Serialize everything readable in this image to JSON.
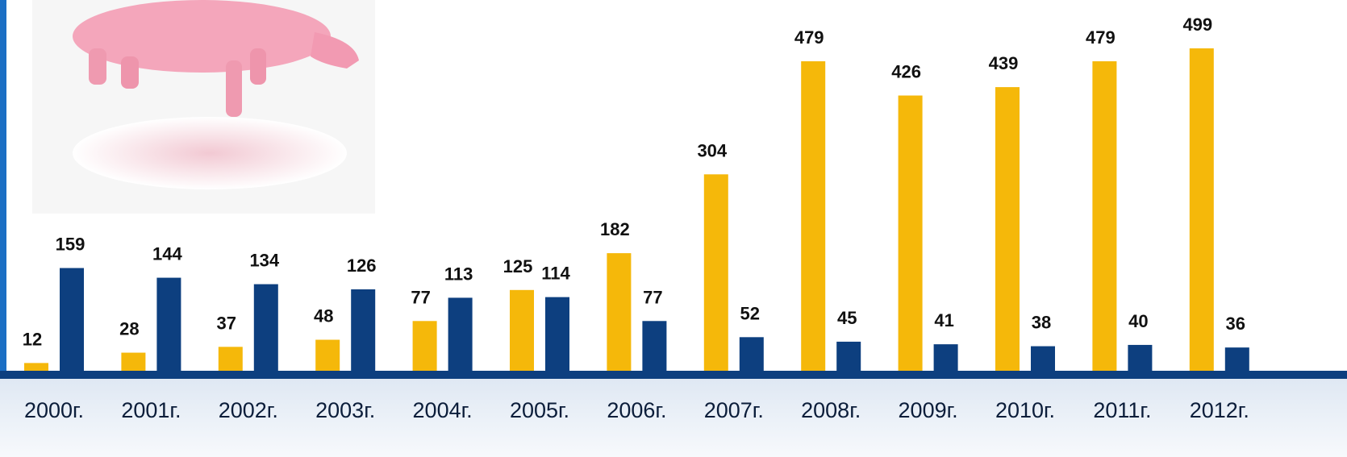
{
  "chart_data": {
    "type": "bar",
    "categories": [
      "2000г.",
      "2001г.",
      "2002г.",
      "2003г.",
      "2004г.",
      "2005г.",
      "2006г.",
      "2007г.",
      "2008г.",
      "2009г.",
      "2010г.",
      "2011г.",
      "2012г."
    ],
    "series": [
      {
        "color": "#f5b80a",
        "values": [
          12,
          28,
          37,
          48,
          77,
          125,
          182,
          304,
          479,
          426,
          439,
          479,
          499
        ]
      },
      {
        "color": "#0d3f7f",
        "values": [
          159,
          144,
          134,
          126,
          113,
          114,
          77,
          52,
          45,
          41,
          38,
          40,
          36
        ]
      }
    ]
  }
}
